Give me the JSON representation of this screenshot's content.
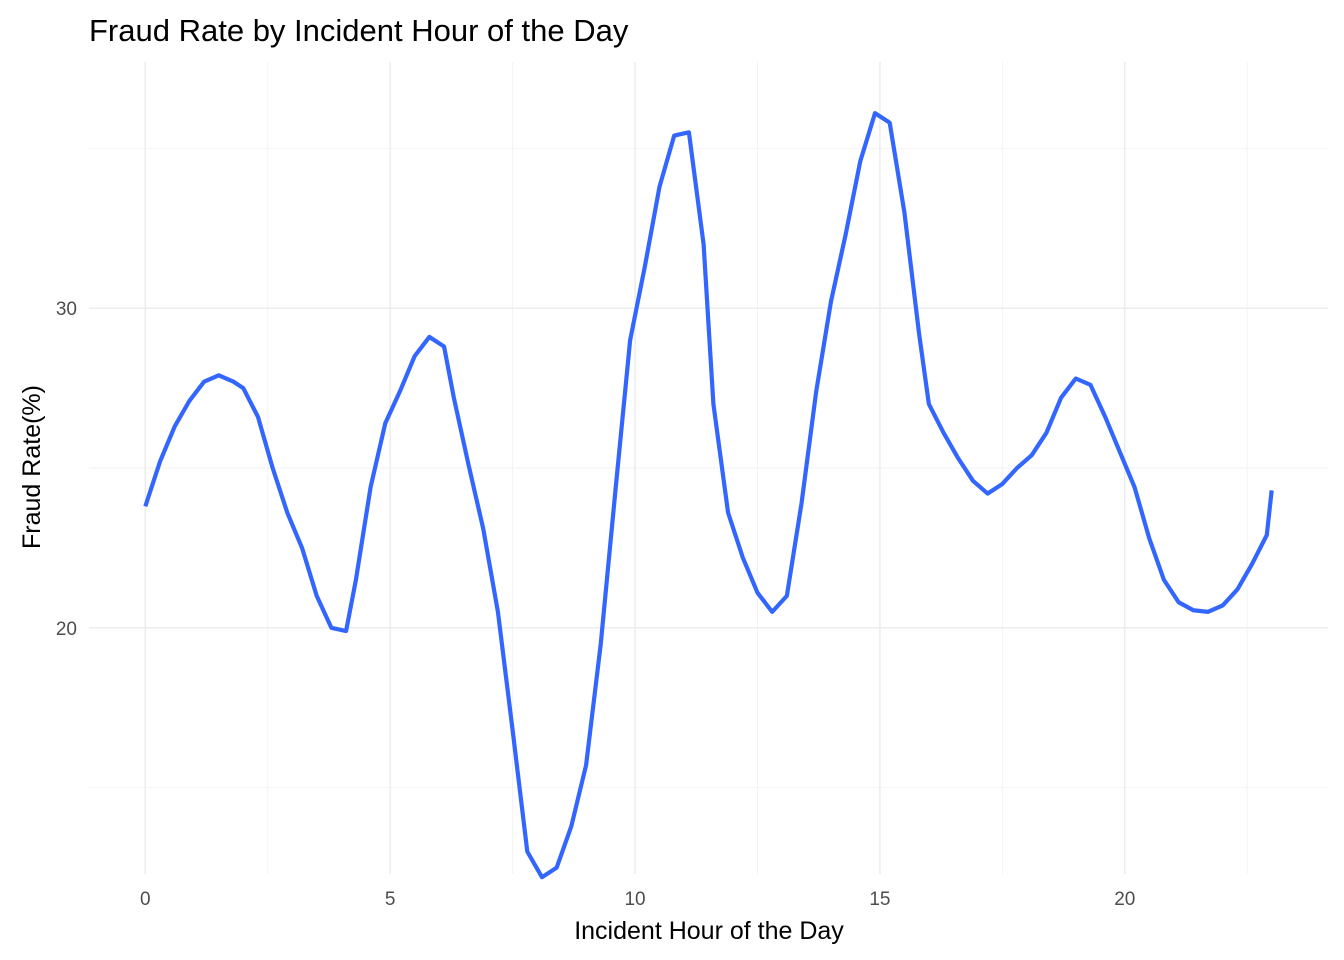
{
  "chart_data": {
    "type": "line",
    "title": "Fraud Rate by Incident Hour of the Day",
    "xlabel": "Incident Hour of the Day",
    "ylabel": "Fraud Rate(%)",
    "xlim": [
      -1.15,
      24.15
    ],
    "ylim": [
      12.3,
      37.7
    ],
    "x_ticks": [
      0,
      5,
      10,
      15,
      20
    ],
    "y_ticks": [
      20,
      30
    ],
    "x_minor_ticks": [
      2.5,
      7.5,
      12.5,
      17.5,
      22.5
    ],
    "y_minor_ticks": [
      15,
      25,
      35
    ],
    "grid": true,
    "series": [
      {
        "color": "#3366ff",
        "x": [
          0,
          0.3,
          0.6,
          0.9,
          1.2,
          1.5,
          1.8,
          2.0,
          2.3,
          2.6,
          2.9,
          3.2,
          3.5,
          3.8,
          4.1,
          4.3,
          4.6,
          4.9,
          5.2,
          5.5,
          5.8,
          6.1,
          6.3,
          6.6,
          6.9,
          7.2,
          7.5,
          7.8,
          8.1,
          8.4,
          8.7,
          9.0,
          9.3,
          9.6,
          9.9,
          10.2,
          10.5,
          10.8,
          11.1,
          11.4,
          11.6,
          11.9,
          12.2,
          12.5,
          12.8,
          13.1,
          13.4,
          13.7,
          14.0,
          14.3,
          14.6,
          14.9,
          15.2,
          15.5,
          15.8,
          16.0,
          16.3,
          16.6,
          16.9,
          17.2,
          17.5,
          17.8,
          18.1,
          18.4,
          18.7,
          19.0,
          19.3,
          19.6,
          19.9,
          20.2,
          20.5,
          20.8,
          21.1,
          21.4,
          21.7,
          22.0,
          22.3,
          22.6,
          22.9,
          23.0
        ],
        "y": [
          23.8,
          25.2,
          26.3,
          27.1,
          27.7,
          27.9,
          27.7,
          27.5,
          26.6,
          25.0,
          23.6,
          22.5,
          21.0,
          20.0,
          19.9,
          21.5,
          24.4,
          26.4,
          27.4,
          28.5,
          29.1,
          28.8,
          27.2,
          25.1,
          23.1,
          20.5,
          16.8,
          13.0,
          12.2,
          12.5,
          13.8,
          15.7,
          19.5,
          24.3,
          29.0,
          31.3,
          33.8,
          35.4,
          35.5,
          32.0,
          27.0,
          23.6,
          22.2,
          21.1,
          20.5,
          21.0,
          23.9,
          27.4,
          30.2,
          32.3,
          34.6,
          36.1,
          35.8,
          33.0,
          29.2,
          27.0,
          26.1,
          25.3,
          24.6,
          24.2,
          24.5,
          25.0,
          25.4,
          26.1,
          27.2,
          27.8,
          27.6,
          26.6,
          25.5,
          24.4,
          22.8,
          21.5,
          20.8,
          20.55,
          20.5,
          20.7,
          21.2,
          22.0,
          22.9,
          24.3
        ]
      }
    ]
  }
}
